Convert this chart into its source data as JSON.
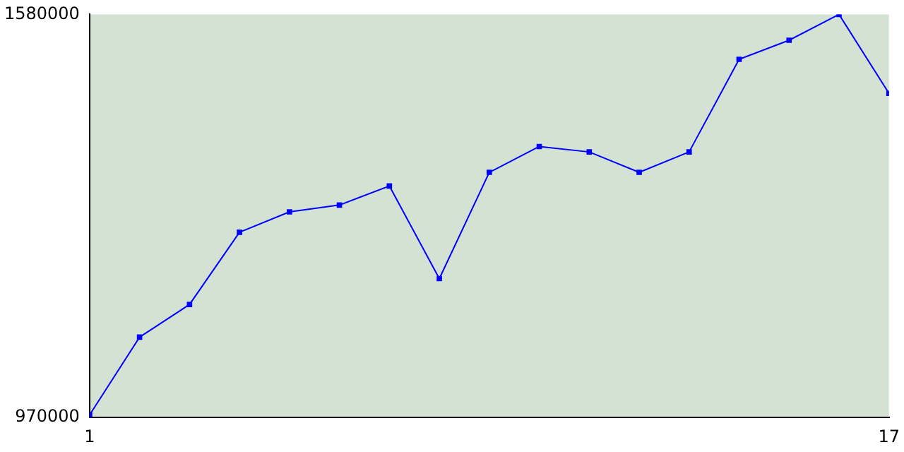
{
  "chart_data": {
    "type": "line",
    "x": [
      1,
      2,
      3,
      4,
      5,
      6,
      7,
      8,
      9,
      10,
      11,
      12,
      13,
      14,
      15,
      16,
      17
    ],
    "series": [
      {
        "color": "#0000ff",
        "values": [
          974000,
          1091600,
          1141100,
          1250300,
          1281200,
          1291500,
          1320400,
          1180200,
          1341000,
          1380100,
          1371900,
          1341000,
          1371900,
          1512000,
          1540900,
          1580000,
          1460500
        ]
      }
    ],
    "xlim": [
      1,
      17
    ],
    "xticks": [
      1,
      17
    ],
    "ylim": [
      970000,
      1580000
    ],
    "yticks": [
      970000,
      1580000
    ],
    "grid": false,
    "legend": false,
    "marker": "square",
    "line_style": "solid"
  }
}
